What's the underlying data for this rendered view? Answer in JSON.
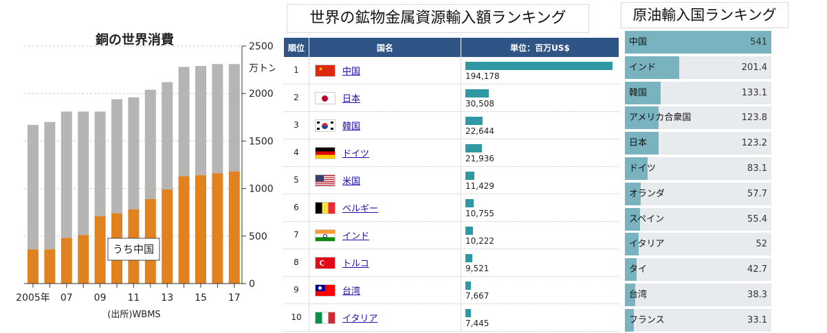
{
  "copper": {
    "title": "銅の世界消費",
    "unit": "万トン",
    "annotation": "うち中国",
    "source": "(出所)WBMS",
    "chart_data": {
      "type": "bar",
      "categories": [
        "2005",
        "2006",
        "2007",
        "2008",
        "2009",
        "2010",
        "2011",
        "2012",
        "2013",
        "2014",
        "2015",
        "2016",
        "2017"
      ],
      "x_tick_labels": [
        "2005年",
        "",
        "07",
        "",
        "09",
        "",
        "11",
        "",
        "13",
        "",
        "15",
        "",
        "17"
      ],
      "series": [
        {
          "name": "銅の世界消費",
          "values": [
            1670,
            1700,
            1810,
            1810,
            1810,
            1940,
            1960,
            2040,
            2120,
            2280,
            2290,
            2310,
            2310
          ],
          "color": "#b7b5b4"
        },
        {
          "name": "うち中国",
          "values": [
            360,
            360,
            480,
            510,
            710,
            740,
            780,
            890,
            990,
            1130,
            1140,
            1160,
            1180
          ],
          "color": "#e08220"
        }
      ],
      "ylim": [
        0,
        2500
      ],
      "yticks": [
        "0",
        "500",
        "1000",
        "1500",
        "2000",
        "2500"
      ]
    }
  },
  "metals": {
    "title": "世界の鉱物金属資源輸入額ランキング",
    "headers": {
      "rank": "順位",
      "country": "国名",
      "value": "単位：百万US$"
    },
    "chart_data": {
      "type": "table",
      "max": 194178,
      "rows": [
        {
          "rank": "1",
          "country": "中国",
          "flag": "cn",
          "value": 194178,
          "label": "194,178"
        },
        {
          "rank": "2",
          "country": "日本",
          "flag": "jp",
          "value": 30508,
          "label": "30,508"
        },
        {
          "rank": "3",
          "country": "韓国",
          "flag": "kr",
          "value": 22644,
          "label": "22,644"
        },
        {
          "rank": "4",
          "country": "ドイツ",
          "flag": "de",
          "value": 21936,
          "label": "21,936"
        },
        {
          "rank": "5",
          "country": "米国",
          "flag": "us",
          "value": 11429,
          "label": "11,429"
        },
        {
          "rank": "6",
          "country": "ベルギー",
          "flag": "be",
          "value": 10755,
          "label": "10,755"
        },
        {
          "rank": "7",
          "country": "インド",
          "flag": "in",
          "value": 10222,
          "label": "10,222"
        },
        {
          "rank": "8",
          "country": "トルコ",
          "flag": "tr",
          "value": 9521,
          "label": "9,521"
        },
        {
          "rank": "9",
          "country": "台湾",
          "flag": "tw",
          "value": 7667,
          "label": "7,667"
        },
        {
          "rank": "10",
          "country": "イタリア",
          "flag": "it",
          "value": 7445,
          "label": "7,445"
        }
      ]
    }
  },
  "oil": {
    "title": "原油輸入国ランキング",
    "chart_data": {
      "type": "bar",
      "max": 541,
      "rows": [
        {
          "country": "中国",
          "value": 541,
          "label": "541"
        },
        {
          "country": "インド",
          "value": 201.4,
          "label": "201.4"
        },
        {
          "country": "韓国",
          "value": 133.1,
          "label": "133.1"
        },
        {
          "country": "アメリカ合衆国",
          "value": 123.8,
          "label": "123.8"
        },
        {
          "country": "日本",
          "value": 123.2,
          "label": "123.2"
        },
        {
          "country": "ドイツ",
          "value": 83.1,
          "label": "83.1"
        },
        {
          "country": "オランダ",
          "value": 57.7,
          "label": "57.7"
        },
        {
          "country": "スペイン",
          "value": 55.4,
          "label": "55.4"
        },
        {
          "country": "イタリア",
          "value": 52,
          "label": "52"
        },
        {
          "country": "タイ",
          "value": 42.7,
          "label": "42.7"
        },
        {
          "country": "台湾",
          "value": 38.3,
          "label": "38.3"
        },
        {
          "country": "フランス",
          "value": 33.1,
          "label": "33.1"
        }
      ]
    }
  }
}
